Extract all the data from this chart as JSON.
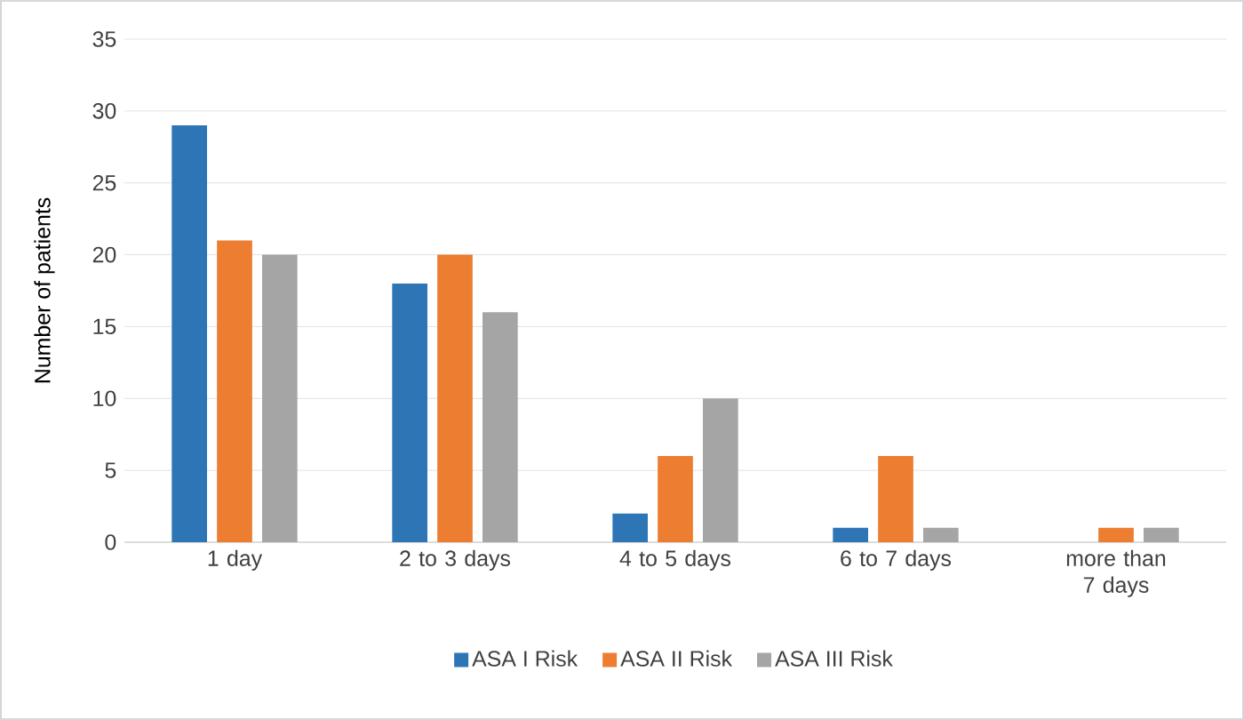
{
  "chart_data": {
    "type": "bar",
    "ylabel": "Number of patients",
    "categories": [
      "1 day",
      "2 to 3 days",
      "4 to 5 days",
      "6 to 7 days",
      "more than 7 days"
    ],
    "series": [
      {
        "name": "ASA I Risk",
        "color": "#2e75b6",
        "values": [
          29,
          18,
          2,
          1,
          0
        ]
      },
      {
        "name": "ASA II Risk",
        "color": "#ed7d31",
        "values": [
          21,
          20,
          6,
          6,
          1
        ]
      },
      {
        "name": "ASA III Risk",
        "color": "#a5a5a5",
        "values": [
          20,
          16,
          10,
          1,
          1
        ]
      }
    ],
    "ylim": [
      0,
      35
    ],
    "yticks": [
      0,
      5,
      10,
      15,
      20,
      25,
      30,
      35
    ],
    "grid": "y",
    "legend": "bottom"
  }
}
